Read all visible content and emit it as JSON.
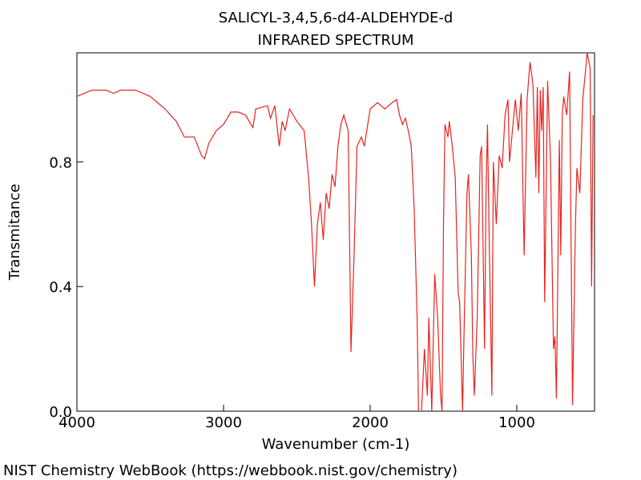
{
  "chart_data": {
    "type": "line",
    "title": "SALICYL-3,4,5,6-d4-ALDEHYDE-d",
    "subtitle": "INFRARED SPECTRUM",
    "x_label": "Wavenumber (cm-1)",
    "y_label": "Transmitance",
    "footer": "NIST Chemistry WebBook (https://webbook.nist.gov/chemistry)",
    "xlim": [
      4000,
      470
    ],
    "ylim": [
      0,
      1.15
    ],
    "xticks": [
      4000,
      3000,
      2000,
      1000
    ],
    "yticks": [
      {
        "value": 0,
        "label": "0.0"
      },
      {
        "value": 0.4,
        "label": "0.4"
      },
      {
        "value": 0.8,
        "label": "0.8"
      }
    ],
    "series": [
      {
        "name": "Transmitance",
        "color": "#e8231f",
        "x": [
          4000,
          3900,
          3800,
          3750,
          3700,
          3600,
          3500,
          3400,
          3322,
          3268,
          3200,
          3150,
          3130,
          3100,
          3050,
          3000,
          2950,
          2900,
          2850,
          2800,
          2780,
          2700,
          2680,
          2650,
          2620,
          2600,
          2580,
          2550,
          2500,
          2450,
          2420,
          2400,
          2380,
          2360,
          2340,
          2320,
          2300,
          2280,
          2260,
          2240,
          2220,
          2200,
          2180,
          2150,
          2131,
          2110,
          2090,
          2060,
          2040,
          2000,
          1950,
          1900,
          1850,
          1820,
          1800,
          1780,
          1760,
          1740,
          1720,
          1700,
          1680,
          1670,
          1650,
          1630,
          1610,
          1600,
          1580,
          1560,
          1540,
          1520,
          1510,
          1500,
          1490,
          1470,
          1460,
          1440,
          1420,
          1400,
          1390,
          1370,
          1360,
          1340,
          1330,
          1310,
          1300,
          1290,
          1270,
          1250,
          1240,
          1220,
          1210,
          1200,
          1190,
          1170,
          1160,
          1140,
          1120,
          1100,
          1080,
          1060,
          1050,
          1030,
          1010,
          990,
          970,
          950,
          930,
          910,
          890,
          870,
          860,
          850,
          840,
          830,
          820,
          810,
          790,
          770,
          750,
          740,
          730,
          710,
          700,
          690,
          680,
          660,
          640,
          620,
          600,
          590,
          570,
          550,
          520,
          500,
          490,
          480
        ],
        "values": [
          1.01,
          1.03,
          1.03,
          1.02,
          1.03,
          1.03,
          1.01,
          0.97,
          0.93,
          0.88,
          0.88,
          0.82,
          0.81,
          0.86,
          0.9,
          0.92,
          0.96,
          0.96,
          0.95,
          0.91,
          0.97,
          0.98,
          0.94,
          0.98,
          0.85,
          0.93,
          0.9,
          0.97,
          0.93,
          0.9,
          0.75,
          0.6,
          0.4,
          0.6,
          0.67,
          0.55,
          0.7,
          0.65,
          0.76,
          0.72,
          0.85,
          0.92,
          0.95,
          0.9,
          0.19,
          0.5,
          0.85,
          0.88,
          0.85,
          0.97,
          0.99,
          0.97,
          0.99,
          1.0,
          0.95,
          0.92,
          0.94,
          0.9,
          0.85,
          0.65,
          0.3,
          0.0,
          0.0,
          0.2,
          0.05,
          0.3,
          0.0,
          0.44,
          0.3,
          0.05,
          0.0,
          0.6,
          0.92,
          0.88,
          0.93,
          0.85,
          0.75,
          0.38,
          0.35,
          0.0,
          0.25,
          0.7,
          0.76,
          0.5,
          0.18,
          0.05,
          0.3,
          0.82,
          0.85,
          0.2,
          0.7,
          0.92,
          0.6,
          0.05,
          0.8,
          0.6,
          0.82,
          0.78,
          0.95,
          1.0,
          0.8,
          0.9,
          1.0,
          0.9,
          1.02,
          0.5,
          1.0,
          1.12,
          1.05,
          0.75,
          1.04,
          0.7,
          1.03,
          0.9,
          1.04,
          0.35,
          1.06,
          0.8,
          0.2,
          0.24,
          0.04,
          0.87,
          0.5,
          0.95,
          1.01,
          0.95,
          1.09,
          0.02,
          0.6,
          0.78,
          0.7,
          1.0,
          1.15,
          1.1,
          0.4,
          0.95
        ]
      }
    ]
  }
}
